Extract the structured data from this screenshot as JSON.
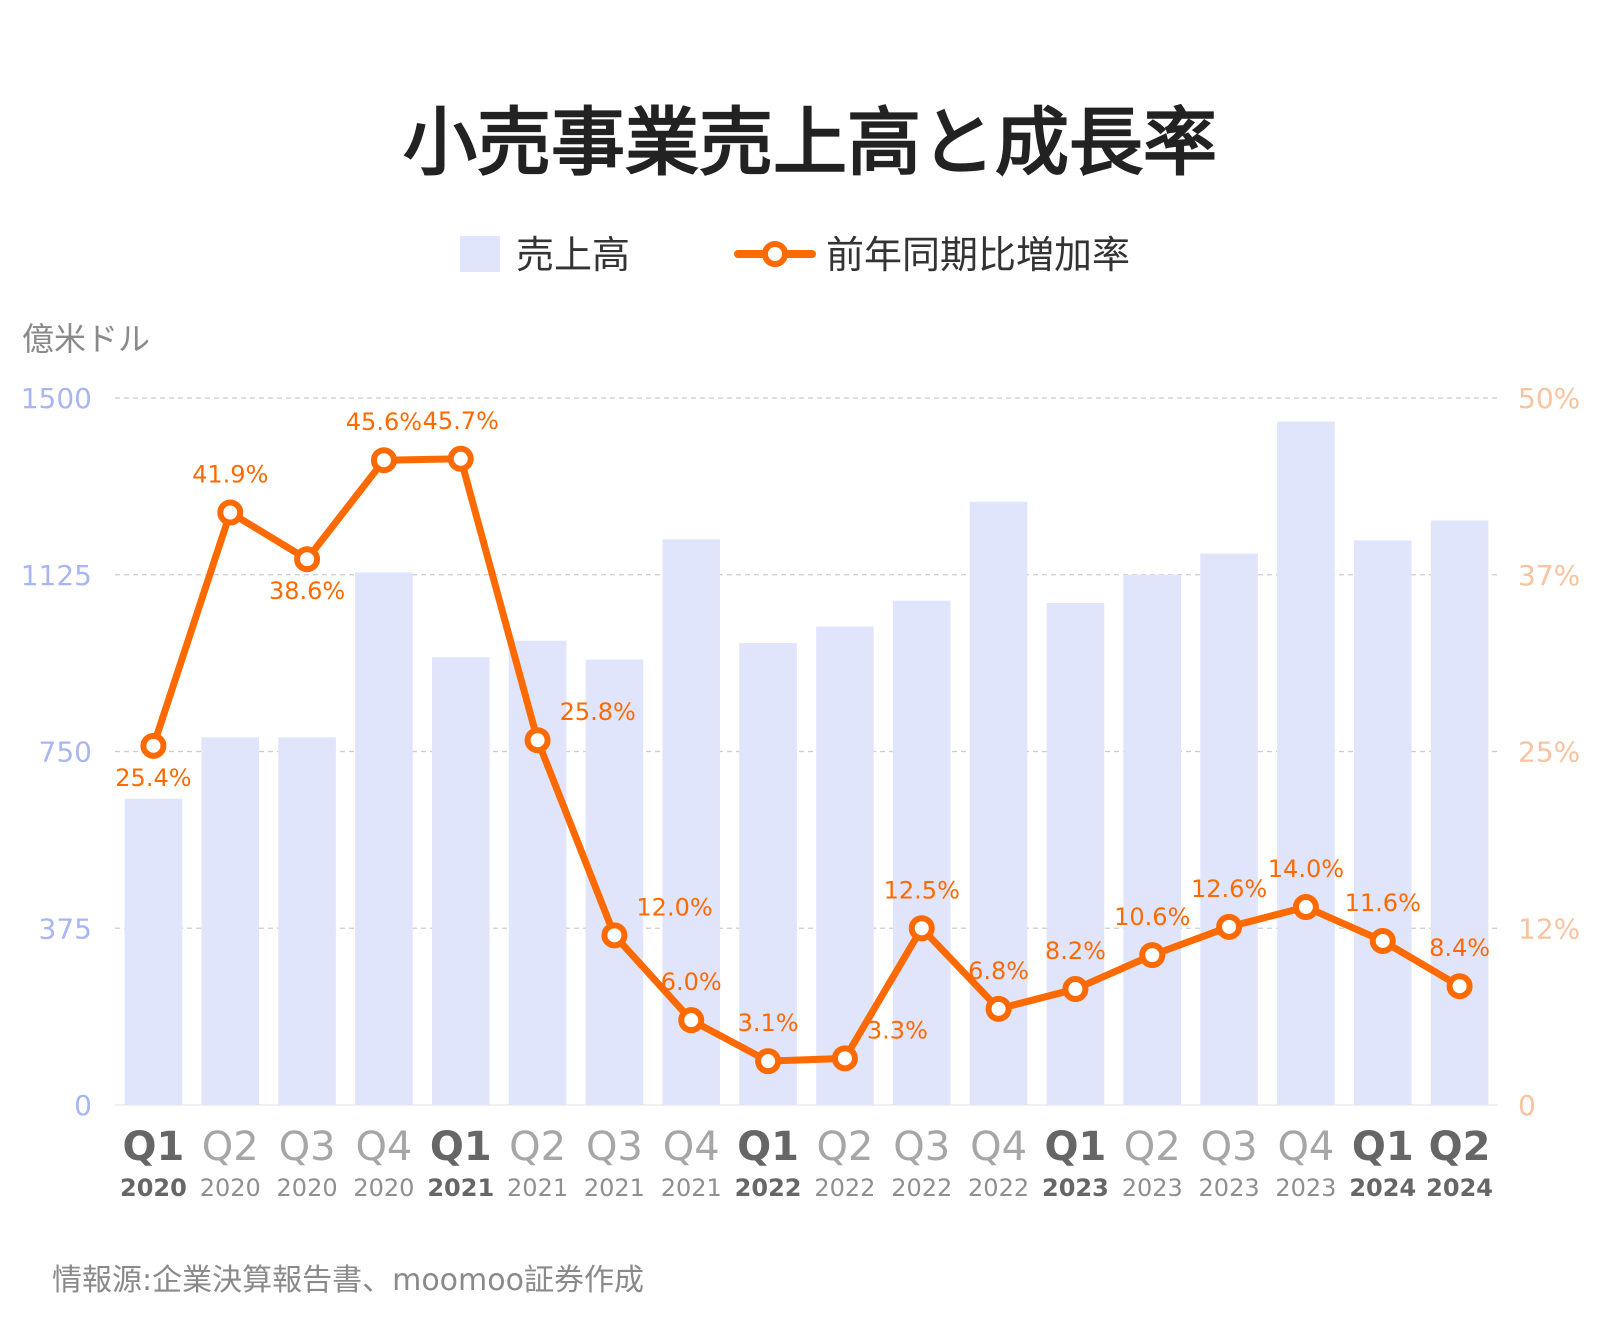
{
  "title": "小売事業売上高と成長率",
  "legend": {
    "bar_label": "売上高",
    "line_label": "前年同期比増加率"
  },
  "unit_label": "億米ドル",
  "source": "情報源:企業決算報告書、moomoo証券作成",
  "colors": {
    "bar": "#e0e5fc",
    "line": "#ff6a00",
    "left_axis": "#a9b6f3",
    "right_axis": "#f9c39f",
    "grid": "#cccccc"
  },
  "chart_data": {
    "type": "bar+line",
    "categories": [
      {
        "q": "Q1",
        "y": "2020",
        "bold": true
      },
      {
        "q": "Q2",
        "y": "2020",
        "bold": false
      },
      {
        "q": "Q3",
        "y": "2020",
        "bold": false
      },
      {
        "q": "Q4",
        "y": "2020",
        "bold": false
      },
      {
        "q": "Q1",
        "y": "2021",
        "bold": true
      },
      {
        "q": "Q2",
        "y": "2021",
        "bold": false
      },
      {
        "q": "Q3",
        "y": "2021",
        "bold": false
      },
      {
        "q": "Q4",
        "y": "2021",
        "bold": false
      },
      {
        "q": "Q1",
        "y": "2022",
        "bold": true
      },
      {
        "q": "Q2",
        "y": "2022",
        "bold": false
      },
      {
        "q": "Q3",
        "y": "2022",
        "bold": false
      },
      {
        "q": "Q4",
        "y": "2022",
        "bold": false
      },
      {
        "q": "Q1",
        "y": "2023",
        "bold": true
      },
      {
        "q": "Q2",
        "y": "2023",
        "bold": false
      },
      {
        "q": "Q3",
        "y": "2023",
        "bold": false
      },
      {
        "q": "Q4",
        "y": "2023",
        "bold": false
      },
      {
        "q": "Q1",
        "y": "2024",
        "bold": true
      },
      {
        "q": "Q2",
        "y": "2024",
        "bold": true
      }
    ],
    "series": [
      {
        "name": "売上高",
        "type": "bar",
        "axis": "left",
        "values": [
          650,
          780,
          780,
          1130,
          950,
          985,
          945,
          1200,
          980,
          1015,
          1070,
          1280,
          1065,
          1125,
          1170,
          1450,
          1198,
          1240
        ]
      },
      {
        "name": "前年同期比増加率",
        "type": "line",
        "axis": "right",
        "values": [
          25.4,
          41.9,
          38.6,
          45.6,
          45.7,
          25.8,
          12.0,
          6.0,
          3.1,
          3.3,
          12.5,
          6.8,
          8.2,
          10.6,
          12.6,
          14.0,
          11.6,
          8.4
        ],
        "labels": [
          "25.4%",
          "41.9%",
          "38.6%",
          "45.6%",
          "45.7%",
          "25.8%",
          "12.0%",
          "6.0%",
          "3.1%",
          "3.3%",
          "12.5%",
          "6.8%",
          "8.2%",
          "10.6%",
          "12.6%",
          "14.0%",
          "11.6%",
          "8.4%"
        ],
        "label_pos": [
          "below",
          "above",
          "below",
          "above",
          "above",
          "right",
          "right",
          "above",
          "above",
          "right",
          "above",
          "above",
          "above",
          "above",
          "above",
          "above",
          "above",
          "above"
        ]
      }
    ],
    "y_left": {
      "min": 0,
      "max": 1500,
      "ticks": [
        0,
        375,
        750,
        1125,
        1500
      ],
      "tick_labels": [
        "0",
        "375",
        "750",
        "1125",
        "1500"
      ]
    },
    "y_right": {
      "min": 0,
      "max": 50,
      "ticks": [
        0,
        12.5,
        25,
        37.5,
        50
      ],
      "tick_labels": [
        "0",
        "12%",
        "25%",
        "37%",
        "50%"
      ]
    },
    "grid": true,
    "legend_position": "top-center"
  }
}
